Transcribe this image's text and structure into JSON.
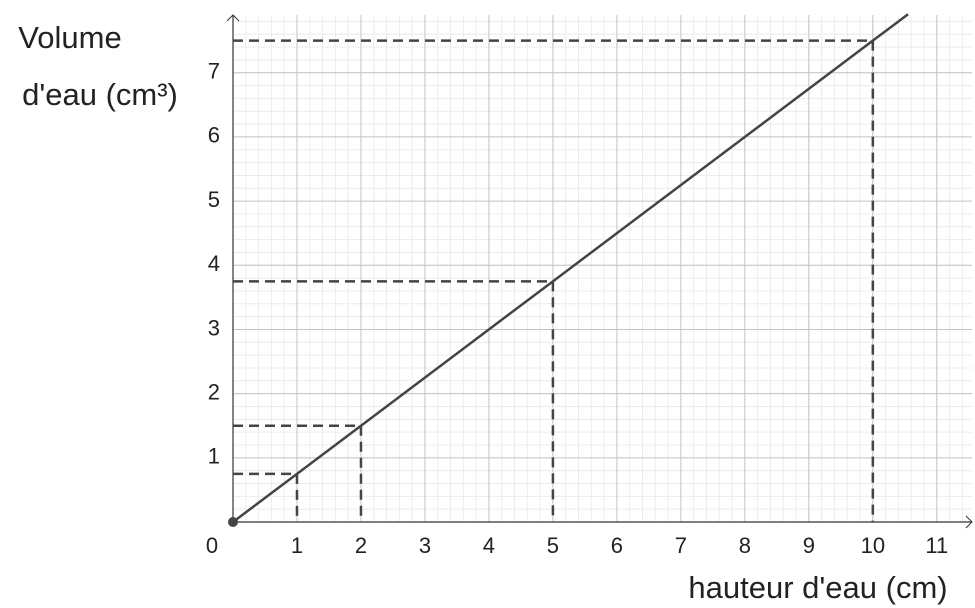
{
  "chart_data": {
    "type": "line",
    "xlabel": "hauteur d'eau (cm)",
    "ylabel": [
      "Volume",
      "d'eau (cm³)"
    ],
    "x": [
      0,
      1,
      2,
      5,
      10,
      10.55
    ],
    "values": [
      0,
      0.75,
      1.5,
      3.75,
      7.5,
      7.9125
    ],
    "color": "#444444",
    "guides": {
      "x": [
        1,
        2,
        5,
        10
      ],
      "values": [
        0.75,
        1.5,
        3.75,
        7.5
      ]
    },
    "xlim": [
      0,
      11.55
    ],
    "ylim": [
      0,
      7.9
    ],
    "xticks": [
      0,
      1,
      2,
      3,
      4,
      5,
      6,
      7,
      8,
      9,
      10,
      11
    ],
    "yticks": [
      1,
      2,
      3,
      4,
      5,
      6,
      7
    ],
    "grid": true,
    "minor_step": 0.2
  }
}
